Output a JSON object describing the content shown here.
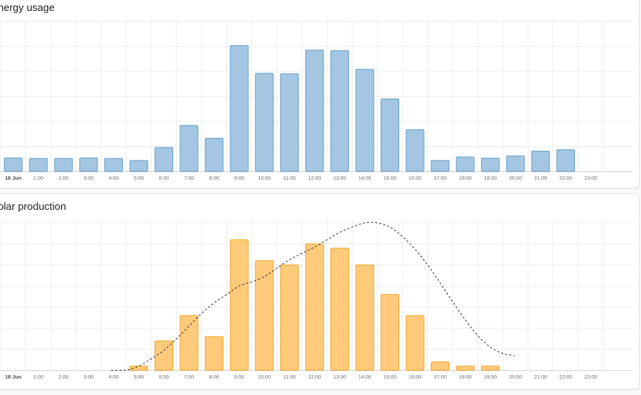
{
  "colors": {
    "usage_fill": "#a4c6e2",
    "usage_stroke": "#5f9bc9",
    "solar_fill": "#ffcb7a",
    "solar_stroke": "#f0a020",
    "forecast": "#333333",
    "grid": "#ececec",
    "axis": "#cfcfcf"
  },
  "cards": {
    "usage_title": "Energy usage",
    "solar_title": "Solar production"
  },
  "chart_data": [
    {
      "type": "bar",
      "title": "Energy usage",
      "categories": [
        "18 Jun",
        "1:00",
        "2:00",
        "3:00",
        "4:00",
        "5:00",
        "6:00",
        "7:00",
        "8:00",
        "9:00",
        "10:00",
        "11:00",
        "12:00",
        "13:00",
        "14:00",
        "15:00",
        "16:00",
        "17:00",
        "18:00",
        "19:00",
        "20:00",
        "21:00",
        "22:00",
        "23:00"
      ],
      "values": [
        0.54,
        0.52,
        0.52,
        0.54,
        0.52,
        0.44,
        0.96,
        1.84,
        1.33,
        5.03,
        3.92,
        3.9,
        4.85,
        4.83,
        4.08,
        2.9,
        1.67,
        0.44,
        0.58,
        0.53,
        0.62,
        0.81,
        0.87,
        null
      ],
      "ylim": [
        0,
        6
      ],
      "grid": true
    },
    {
      "type": "bar",
      "title": "Solar production",
      "categories": [
        "18 Jun",
        "1:00",
        "2:00",
        "3:00",
        "4:00",
        "5:00",
        "6:00",
        "7:00",
        "8:00",
        "9:00",
        "10:00",
        "11:00",
        "12:00",
        "13:00",
        "14:00",
        "15:00",
        "16:00",
        "17:00",
        "18:00",
        "19:00",
        "20:00",
        "21:00",
        "22:00",
        "23:00"
      ],
      "values": [
        0,
        0,
        0,
        0,
        0,
        0.2,
        1.4,
        2.6,
        1.6,
        6.2,
        5.2,
        5.0,
        6.0,
        5.8,
        5.0,
        3.6,
        2.6,
        0.4,
        0.2,
        0.2,
        null,
        null,
        null,
        null
      ],
      "ylim": [
        0,
        7
      ],
      "grid": true,
      "series": [
        {
          "style": "dashed-line",
          "x": [
            3.9,
            4.5,
            5.0,
            5.5,
            6.0,
            6.5,
            7.0,
            7.5,
            8.0,
            8.5,
            9.0,
            9.5,
            10.0,
            10.5,
            11.0,
            11.5,
            12.0,
            12.5,
            13.0,
            13.5,
            14.0,
            14.5,
            15.0,
            15.5,
            16.0,
            16.5,
            17.0,
            17.5,
            18.0,
            18.5,
            19.0,
            19.5,
            19.95
          ],
          "values": [
            0.0,
            0.02,
            0.2,
            0.55,
            0.95,
            1.5,
            2.1,
            2.7,
            3.2,
            3.6,
            4.0,
            4.2,
            4.45,
            4.85,
            5.25,
            5.55,
            5.85,
            6.2,
            6.55,
            6.8,
            7.0,
            7.0,
            6.8,
            6.35,
            5.75,
            5.0,
            4.15,
            3.25,
            2.4,
            1.65,
            1.1,
            0.8,
            0.7
          ]
        }
      ]
    }
  ]
}
